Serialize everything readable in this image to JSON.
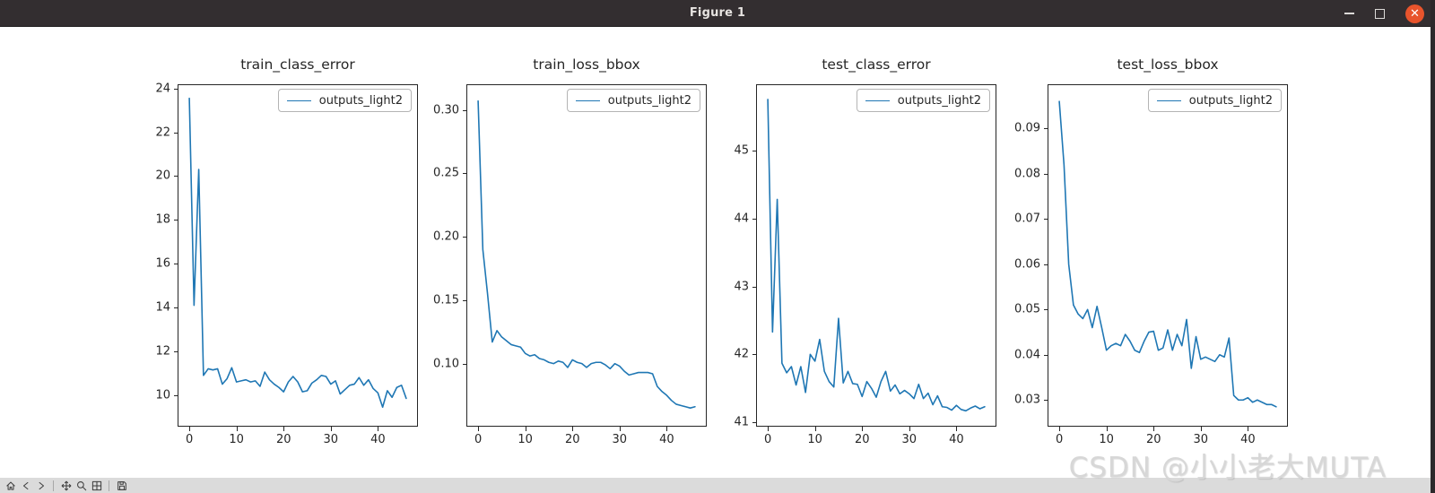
{
  "window": {
    "title": "Figure 1"
  },
  "titlebar_icons": [
    "minimize-icon",
    "maximize-icon",
    "close-icon"
  ],
  "toolbar": {
    "buttons": [
      "home-icon",
      "back-icon",
      "forward-icon",
      "pan-icon",
      "zoom-icon",
      "subplots-icon",
      "save-icon"
    ]
  },
  "watermark": "CSDN @小小老大MUTA",
  "colors": {
    "line": "#1f77b4",
    "titlebar_bg": "#332e30",
    "close_button": "#e8542c",
    "toolbar_bg": "#dbdbdb",
    "watermark": "#d7d7d7",
    "spine": "#262626"
  },
  "chart_data": {
    "type": "line",
    "legend_label": "outputs_light2",
    "legend_position": "upper right",
    "grid": false,
    "x": [
      0,
      1,
      2,
      3,
      4,
      5,
      6,
      7,
      8,
      9,
      10,
      11,
      12,
      13,
      14,
      15,
      16,
      17,
      18,
      19,
      20,
      21,
      22,
      23,
      24,
      25,
      26,
      27,
      28,
      29,
      30,
      31,
      32,
      33,
      34,
      35,
      36,
      37,
      38,
      39,
      40,
      41,
      42,
      43,
      44,
      45,
      46
    ],
    "xlim": [
      -2.3,
      48.3
    ],
    "xtick_vals": [
      0,
      10,
      20,
      30,
      40
    ],
    "xtick_labels": [
      "0",
      "10",
      "20",
      "30",
      "40"
    ],
    "plots": [
      {
        "title": "train_class_error",
        "ylim": [
          8.6,
          24.15
        ],
        "ytick_vals": [
          10,
          12,
          14,
          16,
          18,
          20,
          22,
          24
        ],
        "ytick_labels": [
          "10",
          "12",
          "14",
          "16",
          "18",
          "20",
          "22",
          "24"
        ],
        "values": [
          23.55,
          14.1,
          20.3,
          10.9,
          11.2,
          11.15,
          11.2,
          10.5,
          10.75,
          11.25,
          10.6,
          10.65,
          10.7,
          10.6,
          10.65,
          10.4,
          11.05,
          10.7,
          10.5,
          10.35,
          10.15,
          10.6,
          10.85,
          10.6,
          10.15,
          10.2,
          10.55,
          10.7,
          10.9,
          10.85,
          10.5,
          10.65,
          10.05,
          10.25,
          10.45,
          10.5,
          10.8,
          10.45,
          10.7,
          10.3,
          10.1,
          9.45,
          10.2,
          9.9,
          10.35,
          10.45,
          9.85
        ]
      },
      {
        "title": "train_loss_bbox",
        "ylim": [
          0.051,
          0.3195
        ],
        "ytick_vals": [
          0.1,
          0.15,
          0.2,
          0.25,
          0.3
        ],
        "ytick_labels": [
          "0.10",
          "0.15",
          "0.20",
          "0.25",
          "0.30"
        ],
        "values": [
          0.307,
          0.19,
          0.155,
          0.117,
          0.126,
          0.121,
          0.118,
          0.115,
          0.114,
          0.113,
          0.108,
          0.106,
          0.107,
          0.104,
          0.103,
          0.101,
          0.1,
          0.102,
          0.101,
          0.097,
          0.103,
          0.101,
          0.1,
          0.097,
          0.1,
          0.101,
          0.101,
          0.099,
          0.096,
          0.1,
          0.098,
          0.094,
          0.091,
          0.092,
          0.093,
          0.093,
          0.093,
          0.092,
          0.082,
          0.078,
          0.075,
          0.071,
          0.068,
          0.067,
          0.066,
          0.065,
          0.066
        ]
      },
      {
        "title": "test_class_error",
        "ylim": [
          40.95,
          45.96
        ],
        "ytick_vals": [
          41,
          42,
          43,
          44,
          45
        ],
        "ytick_labels": [
          "41",
          "42",
          "43",
          "44",
          "45"
        ],
        "values": [
          45.75,
          42.33,
          44.28,
          41.87,
          41.73,
          41.82,
          41.55,
          41.82,
          41.44,
          42.0,
          41.9,
          42.22,
          41.75,
          41.6,
          41.52,
          42.53,
          41.58,
          41.75,
          41.57,
          41.56,
          41.38,
          41.6,
          41.5,
          41.37,
          41.6,
          41.75,
          41.46,
          41.55,
          41.42,
          41.47,
          41.42,
          41.35,
          41.56,
          41.35,
          41.43,
          41.26,
          41.39,
          41.23,
          41.22,
          41.18,
          41.25,
          41.19,
          41.17,
          41.21,
          41.24,
          41.2,
          41.23
        ]
      },
      {
        "title": "test_loss_bbox",
        "ylim": [
          0.0243,
          0.0996
        ],
        "ytick_vals": [
          0.03,
          0.04,
          0.05,
          0.06,
          0.07,
          0.08,
          0.09
        ],
        "ytick_labels": [
          "0.03",
          "0.04",
          "0.05",
          "0.06",
          "0.07",
          "0.08",
          "0.09"
        ],
        "values": [
          0.096,
          0.082,
          0.06,
          0.051,
          0.049,
          0.048,
          0.05,
          0.046,
          0.0507,
          0.046,
          0.041,
          0.042,
          0.0425,
          0.042,
          0.0445,
          0.043,
          0.041,
          0.0405,
          0.043,
          0.045,
          0.0452,
          0.041,
          0.0415,
          0.0455,
          0.041,
          0.0445,
          0.042,
          0.0478,
          0.037,
          0.044,
          0.039,
          0.0395,
          0.039,
          0.0385,
          0.04,
          0.0395,
          0.0437,
          0.031,
          0.03,
          0.03,
          0.0305,
          0.0295,
          0.03,
          0.0295,
          0.029,
          0.029,
          0.0285
        ]
      }
    ]
  }
}
